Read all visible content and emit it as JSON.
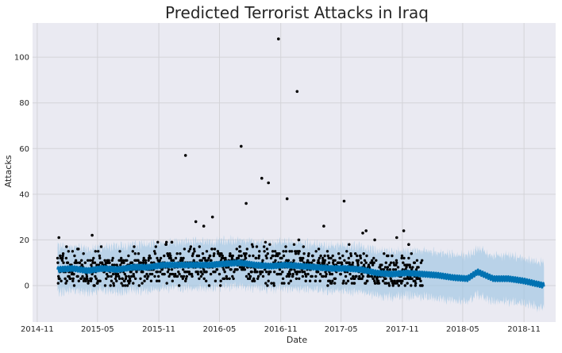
{
  "chart_data": {
    "type": "scatter",
    "title": "Predicted Terrorist Attacks in Iraq",
    "xlabel": "Date",
    "ylabel": "Attacks",
    "xlim": [
      "2014-10-18",
      "2019-02-04"
    ],
    "ylim": [
      -16,
      115
    ],
    "x_ticks": [
      "2014-11",
      "2015-05",
      "2015-11",
      "2016-05",
      "2016-11",
      "2017-05",
      "2017-11",
      "2018-05",
      "2018-11"
    ],
    "y_ticks": [
      0,
      20,
      40,
      60,
      80,
      100
    ],
    "grid": true,
    "background_color": "#eaeaf2",
    "grid_color": "#ffffff",
    "observed_point_color": "#000000",
    "forecast_line_color": "#0072b2",
    "uncertainty_band_color": "#9ec4e2",
    "observed_date_range": [
      "2015-01-01",
      "2017-12-31"
    ],
    "forecast_end_date": "2018-12-31",
    "forecast_series": [
      {
        "date": "2015-01-01",
        "yhat": 7,
        "lower": -3,
        "upper": 17
      },
      {
        "date": "2015-02-15",
        "yhat": 7.5,
        "lower": -2,
        "upper": 17
      },
      {
        "date": "2015-04-01",
        "yhat": 6.5,
        "lower": -3,
        "upper": 16
      },
      {
        "date": "2015-05-15",
        "yhat": 7.5,
        "lower": -2,
        "upper": 17
      },
      {
        "date": "2015-07-01",
        "yhat": 7,
        "lower": -3,
        "upper": 17
      },
      {
        "date": "2015-08-15",
        "yhat": 8,
        "lower": -2,
        "upper": 18
      },
      {
        "date": "2015-10-01",
        "yhat": 8,
        "lower": -2,
        "upper": 18
      },
      {
        "date": "2015-11-15",
        "yhat": 9,
        "lower": -1,
        "upper": 19
      },
      {
        "date": "2016-01-01",
        "yhat": 9,
        "lower": -1,
        "upper": 19
      },
      {
        "date": "2016-02-15",
        "yhat": 9,
        "lower": -1,
        "upper": 19
      },
      {
        "date": "2016-04-01",
        "yhat": 9,
        "lower": -1,
        "upper": 19
      },
      {
        "date": "2016-05-15",
        "yhat": 9.5,
        "lower": -0.5,
        "upper": 19.5
      },
      {
        "date": "2016-07-01",
        "yhat": 10,
        "lower": 0,
        "upper": 20
      },
      {
        "date": "2016-08-15",
        "yhat": 9,
        "lower": -1,
        "upper": 19
      },
      {
        "date": "2016-10-01",
        "yhat": 8.5,
        "lower": -1.5,
        "upper": 18.5
      },
      {
        "date": "2016-11-15",
        "yhat": 9,
        "lower": -1,
        "upper": 19
      },
      {
        "date": "2017-01-01",
        "yhat": 8.5,
        "lower": -1.5,
        "upper": 18.5
      },
      {
        "date": "2017-02-15",
        "yhat": 8,
        "lower": -2,
        "upper": 18
      },
      {
        "date": "2017-04-01",
        "yhat": 7.5,
        "lower": -2.5,
        "upper": 17.5
      },
      {
        "date": "2017-05-15",
        "yhat": 7.5,
        "lower": -2.5,
        "upper": 17.5
      },
      {
        "date": "2017-07-01",
        "yhat": 7,
        "lower": -3,
        "upper": 17
      },
      {
        "date": "2017-08-15",
        "yhat": 5.5,
        "lower": -4.5,
        "upper": 15.5
      },
      {
        "date": "2017-10-01",
        "yhat": 5,
        "lower": -5,
        "upper": 15
      },
      {
        "date": "2017-11-15",
        "yhat": 5.5,
        "lower": -4.5,
        "upper": 15.5
      },
      {
        "date": "2018-01-01",
        "yhat": 5,
        "lower": -5,
        "upper": 15
      },
      {
        "date": "2018-02-15",
        "yhat": 4.5,
        "lower": -5.5,
        "upper": 14.5
      },
      {
        "date": "2018-04-01",
        "yhat": 3.5,
        "lower": -6.5,
        "upper": 13.5
      },
      {
        "date": "2018-05-15",
        "yhat": 3,
        "lower": -7,
        "upper": 13
      },
      {
        "date": "2018-06-15",
        "yhat": 6,
        "lower": -4,
        "upper": 16
      },
      {
        "date": "2018-08-01",
        "yhat": 3,
        "lower": -7,
        "upper": 13
      },
      {
        "date": "2018-09-15",
        "yhat": 3,
        "lower": -7,
        "upper": 13
      },
      {
        "date": "2018-11-01",
        "yhat": 2,
        "lower": -8,
        "upper": 12
      },
      {
        "date": "2018-12-31",
        "yhat": 0,
        "lower": -10,
        "upper": 10
      }
    ],
    "outliers": [
      {
        "date": "2015-01-05",
        "y": 21
      },
      {
        "date": "2015-04-15",
        "y": 22
      },
      {
        "date": "2015-12-10",
        "y": 19
      },
      {
        "date": "2016-01-20",
        "y": 57
      },
      {
        "date": "2016-02-20",
        "y": 28
      },
      {
        "date": "2016-03-15",
        "y": 26
      },
      {
        "date": "2016-04-10",
        "y": 30
      },
      {
        "date": "2016-07-05",
        "y": 61
      },
      {
        "date": "2016-07-20",
        "y": 36
      },
      {
        "date": "2016-09-05",
        "y": 47
      },
      {
        "date": "2016-09-25",
        "y": 45
      },
      {
        "date": "2016-10-25",
        "y": 108
      },
      {
        "date": "2016-11-20",
        "y": 38
      },
      {
        "date": "2016-12-20",
        "y": 85
      },
      {
        "date": "2016-12-25",
        "y": 20
      },
      {
        "date": "2017-03-10",
        "y": 26
      },
      {
        "date": "2017-05-10",
        "y": 37
      },
      {
        "date": "2017-07-15",
        "y": 24
      },
      {
        "date": "2017-07-05",
        "y": 23
      },
      {
        "date": "2017-08-10",
        "y": 20
      },
      {
        "date": "2017-10-15",
        "y": 21
      },
      {
        "date": "2017-11-05",
        "y": 24
      },
      {
        "date": "2017-11-20",
        "y": 18
      }
    ]
  }
}
